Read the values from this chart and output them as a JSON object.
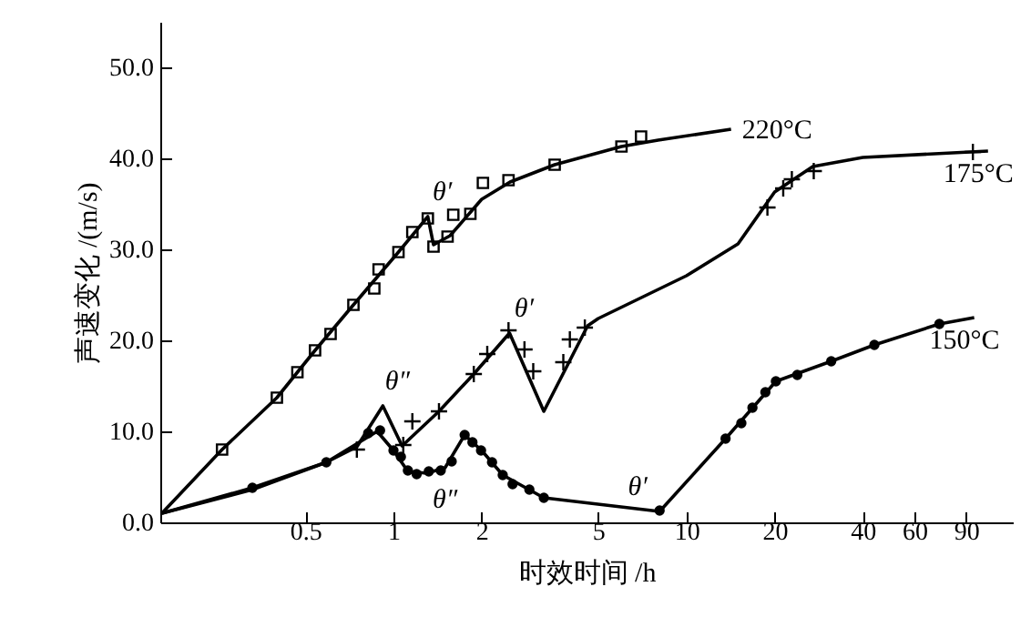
{
  "chart_data": {
    "type": "line",
    "xlabel": "时效时间 /h",
    "ylabel": "声速变化 /(m/s)",
    "log": "x",
    "grid": false,
    "xlim": [
      0.16,
      130
    ],
    "xticks": [
      0.5,
      1,
      2,
      5,
      10,
      20,
      40,
      60,
      90
    ],
    "ylim": [
      0,
      55
    ],
    "yticks": [
      {
        "value": 0,
        "label": "0.0"
      },
      {
        "value": 10,
        "label": "10.0"
      },
      {
        "value": 20,
        "label": "20.0"
      },
      {
        "value": 30,
        "label": "30.0"
      },
      {
        "value": 40,
        "label": "40.0"
      },
      {
        "value": 50,
        "label": "50.0"
      }
    ],
    "series": [
      {
        "type": "line",
        "name": "220°C",
        "color": "#000000",
        "marker": "none",
        "x": [
          0.162,
          0.26,
          0.4,
          0.54,
          0.73,
          1.04,
          1.31,
          1.37,
          1.56,
          2.0,
          2.5,
          3.55,
          6.0,
          8.0,
          14.2
        ],
        "values": [
          1.0,
          8.0,
          13.7,
          18.9,
          23.9,
          29.7,
          33.6,
          30.5,
          31.5,
          35.5,
          37.4,
          39.3,
          41.3,
          42.0,
          43.2
        ]
      },
      {
        "type": "scatter",
        "color": "#000000",
        "marker": "square",
        "x": [
          0.26,
          0.4,
          0.47,
          0.54,
          0.61,
          0.73,
          0.86,
          0.89,
          1.04,
          1.16,
          1.31,
          1.37,
          1.53,
          1.6,
          1.83,
          2.02,
          2.47,
          3.55,
          6.0,
          7.0
        ],
        "values": [
          8.0,
          13.7,
          16.5,
          18.9,
          20.7,
          23.9,
          25.7,
          27.8,
          29.7,
          31.9,
          33.4,
          30.3,
          31.4,
          33.8,
          33.9,
          37.3,
          37.6,
          39.3,
          41.3,
          42.4
        ]
      },
      {
        "type": "line",
        "name": "175°C",
        "color": "#000000",
        "marker": "none",
        "x": [
          0.162,
          0.33,
          0.59,
          0.75,
          0.92,
          1.07,
          1.43,
          1.88,
          2.49,
          3.26,
          4.6,
          5,
          10,
          15,
          20,
          27,
          40,
          107
        ],
        "values": [
          1.0,
          3.6,
          6.6,
          8.3,
          12.8,
          8.4,
          12.2,
          16.3,
          20.8,
          12.2,
          21.6,
          22.4,
          27.1,
          30.6,
          36.3,
          39.1,
          40.1,
          40.8
        ]
      },
      {
        "type": "scatter",
        "color": "#000000",
        "marker": "cross",
        "x": [
          0.75,
          1.08,
          1.16,
          1.43,
          1.88,
          2.09,
          2.47,
          2.8,
          3.0,
          3.8,
          4.0,
          4.5,
          18.9,
          21.4,
          22.9,
          27.2,
          95
        ],
        "values": [
          8.0,
          8.5,
          11.1,
          12.2,
          16.3,
          18.5,
          21.1,
          19.0,
          16.6,
          17.6,
          20.1,
          21.4,
          34.6,
          36.7,
          37.7,
          38.6,
          40.7
        ]
      },
      {
        "type": "line",
        "name": "150°C",
        "color": "#000000",
        "marker": "none",
        "x": [
          0.162,
          0.33,
          0.59,
          0.88,
          1.0,
          1.12,
          1.3,
          1.5,
          1.75,
          2.0,
          2.36,
          3.26,
          8.1,
          13.6,
          20.2,
          31.2,
          43.8,
          73,
          96
        ],
        "values": [
          1.0,
          3.8,
          6.6,
          10.0,
          7.9,
          5.6,
          5.4,
          6.0,
          9.6,
          7.9,
          5.2,
          2.7,
          1.2,
          9.2,
          15.5,
          17.7,
          19.5,
          21.8,
          22.5
        ]
      },
      {
        "type": "scatter",
        "color": "#000000",
        "marker": "circle",
        "x": [
          0.33,
          0.59,
          0.82,
          0.9,
          1.0,
          1.06,
          1.12,
          1.2,
          1.32,
          1.45,
          1.58,
          1.75,
          1.86,
          1.99,
          2.17,
          2.36,
          2.55,
          2.91,
          3.26,
          8.1,
          13.6,
          15.4,
          16.8,
          18.6,
          20.2,
          23.9,
          31.2,
          43.8,
          73
        ],
        "values": [
          3.8,
          6.6,
          9.8,
          10.1,
          7.9,
          7.2,
          5.7,
          5.3,
          5.6,
          5.7,
          6.7,
          9.6,
          8.8,
          7.9,
          6.6,
          5.2,
          4.2,
          3.6,
          2.7,
          1.3,
          9.2,
          10.9,
          12.6,
          14.3,
          15.5,
          16.2,
          17.7,
          19.5,
          21.8
        ]
      }
    ],
    "annotations": [
      {
        "text": "θ′",
        "x": 1.31,
        "y": 33.6
      },
      {
        "text": "θ″",
        "x": 0.92,
        "y": 12.8
      },
      {
        "text": "θ″",
        "x": 1.3,
        "y": 5.4
      },
      {
        "text": "θ′",
        "x": 2.49,
        "y": 20.8
      },
      {
        "text": "θ′",
        "x": 8.1,
        "y": 1.2
      }
    ]
  }
}
